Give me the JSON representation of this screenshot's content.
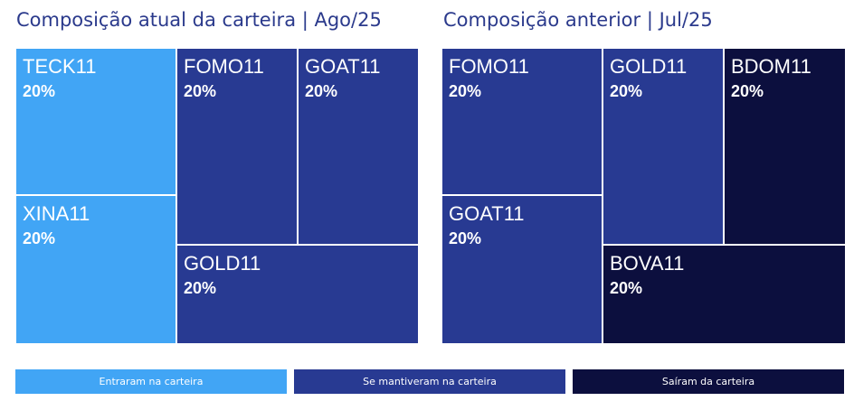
{
  "chart_data": [
    {
      "type": "treemap",
      "title": "Composição atual da carteira | Ago/25",
      "items": [
        {
          "label": "TECK11",
          "value": 20,
          "display": "20%",
          "category": "entered"
        },
        {
          "label": "XINA11",
          "value": 20,
          "display": "20%",
          "category": "entered"
        },
        {
          "label": "FOMO11",
          "value": 20,
          "display": "20%",
          "category": "kept"
        },
        {
          "label": "GOAT11",
          "value": 20,
          "display": "20%",
          "category": "kept"
        },
        {
          "label": "GOLD11",
          "value": 20,
          "display": "20%",
          "category": "kept"
        }
      ]
    },
    {
      "type": "treemap",
      "title": "Composição anterior | Jul/25",
      "items": [
        {
          "label": "FOMO11",
          "value": 20,
          "display": "20%",
          "category": "kept"
        },
        {
          "label": "GOAT11",
          "value": 20,
          "display": "20%",
          "category": "kept"
        },
        {
          "label": "GOLD11",
          "value": 20,
          "display": "20%",
          "category": "kept"
        },
        {
          "label": "BDOM11",
          "value": 20,
          "display": "20%",
          "category": "exited"
        },
        {
          "label": "BOVA11",
          "value": 20,
          "display": "20%",
          "category": "exited"
        }
      ]
    }
  ],
  "legend": [
    {
      "label": "Entraram na carteira",
      "color": "#41a5f5"
    },
    {
      "label": "Se mantiveram na carteira",
      "color": "#283a92"
    },
    {
      "label": "Saíram da carteira",
      "color": "#0c0f3e"
    }
  ],
  "colors": {
    "entered": "#41a5f5",
    "kept": "#283a92",
    "exited": "#0c0f3e",
    "title": "#2b3a8c"
  }
}
